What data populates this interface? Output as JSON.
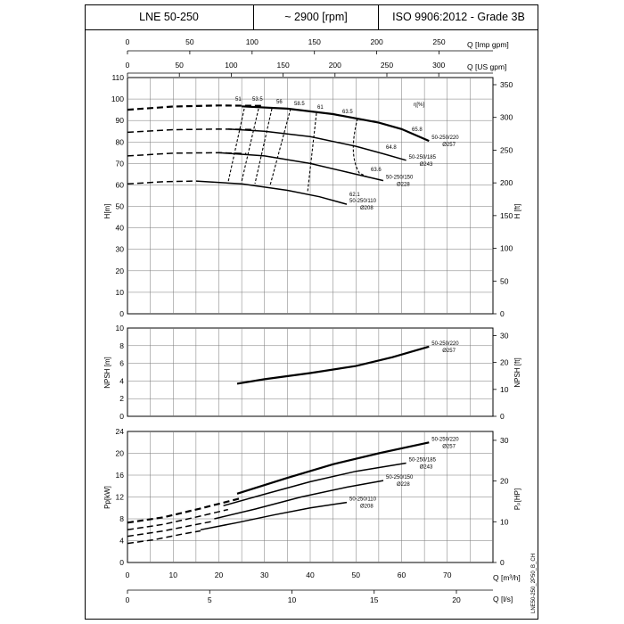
{
  "header": {
    "model": "LNE 50-250",
    "speed": "~ 2900 [rpm]",
    "standard": "ISO 9906:2012 - Grade 3B"
  },
  "chart_data": [
    {
      "type": "line",
      "panel": "head",
      "ylabel": "H[m]",
      "ylabel2": "H [ft]",
      "ylim": [
        0,
        110
      ],
      "yticks": [
        0,
        10,
        20,
        30,
        40,
        50,
        60,
        70,
        80,
        90,
        100,
        110
      ],
      "y2ticks": [
        0,
        50,
        100,
        150,
        200,
        250,
        300,
        350
      ],
      "xlim": [
        0,
        80
      ],
      "top_axis_imp": {
        "label": "Q [Imp gpm]",
        "ticks": [
          0,
          50,
          100,
          150,
          200,
          250
        ]
      },
      "top_axis_us": {
        "label": "Q [US gpm]",
        "ticks": [
          0,
          50,
          100,
          150,
          200,
          250,
          300
        ]
      },
      "efficiency_label": "η[%]",
      "series": [
        {
          "name": "50-250/220",
          "diameter": "Ø257",
          "dashed": [
            [
              0,
              95
            ],
            [
              10,
              96.5
            ],
            [
              20,
              97
            ],
            [
              30,
              96.8
            ]
          ],
          "solid": [
            [
              25,
              96.6
            ],
            [
              35,
              95.5
            ],
            [
              45,
              93
            ],
            [
              55,
              89
            ],
            [
              60,
              86
            ],
            [
              66,
              80.5
            ]
          ]
        },
        {
          "name": "50-250/185",
          "diameter": "Ø243",
          "dashed": [
            [
              0,
              84.5
            ],
            [
              10,
              85.7
            ],
            [
              20,
              86
            ],
            [
              28,
              85.8
            ]
          ],
          "solid": [
            [
              22,
              86
            ],
            [
              30,
              85
            ],
            [
              40,
              82.5
            ],
            [
              50,
              78
            ],
            [
              56,
              74.5
            ],
            [
              61,
              71.5
            ]
          ]
        },
        {
          "name": "50-250/150",
          "diameter": "Ø228",
          "dashed": [
            [
              0,
              73.5
            ],
            [
              10,
              74.8
            ],
            [
              20,
              75
            ],
            [
              26,
              74.6
            ]
          ],
          "solid": [
            [
              20,
              75
            ],
            [
              30,
              73.5
            ],
            [
              40,
              70
            ],
            [
              48,
              66
            ],
            [
              56,
              62
            ]
          ]
        },
        {
          "name": "50-250/110",
          "diameter": "Ø208",
          "dashed": [
            [
              0,
              60.5
            ],
            [
              8,
              61.5
            ],
            [
              15,
              61.8
            ]
          ],
          "solid": [
            [
              15,
              61.8
            ],
            [
              25,
              60.5
            ],
            [
              35,
              57.5
            ],
            [
              42,
              54.5
            ],
            [
              48,
              51
            ]
          ]
        }
      ],
      "efficiency_values": [
        "51",
        "53.5",
        "56",
        "58.5",
        "61",
        "63.5",
        "65.8",
        "64.8",
        "63.6",
        "62.1"
      ]
    },
    {
      "type": "line",
      "panel": "npsh",
      "ylabel": "NPSH [m]",
      "ylabel2": "NPSH [ft]",
      "ylim": [
        0,
        10
      ],
      "yticks": [
        0,
        2,
        4,
        6,
        8,
        10
      ],
      "y2ticks": [
        0,
        10,
        20,
        30
      ],
      "series": [
        {
          "name": "50-250/220",
          "diameter": "Ø257",
          "points": [
            [
              24,
              3.7
            ],
            [
              30,
              4.2
            ],
            [
              40,
              4.9
            ],
            [
              50,
              5.7
            ],
            [
              58,
              6.7
            ],
            [
              66,
              7.9
            ]
          ]
        }
      ]
    },
    {
      "type": "line",
      "panel": "power",
      "ylabel": "Pp[kW]",
      "ylabel2": "Pₚ[HP]",
      "ylim": [
        0,
        24
      ],
      "yticks": [
        0,
        4,
        8,
        12,
        16,
        20,
        24
      ],
      "y2ticks": [
        0,
        10,
        20,
        30
      ],
      "xlabel": "Q [m³/h]",
      "xticks": [
        0,
        10,
        20,
        30,
        40,
        50,
        60,
        70
      ],
      "x2label": "Q [l/s]",
      "x2ticks": [
        0,
        5,
        10,
        15,
        20
      ],
      "series": [
        {
          "name": "50-250/220",
          "diameter": "Ø257",
          "dashed": [
            [
              0,
              7.3
            ],
            [
              8,
              8.3
            ],
            [
              16,
              9.9
            ],
            [
              25,
              11.8
            ]
          ],
          "solid": [
            [
              24,
              12.6
            ],
            [
              35,
              15.5
            ],
            [
              45,
              18
            ],
            [
              55,
              20
            ],
            [
              66,
              22
            ]
          ]
        },
        {
          "name": "50-250/185",
          "diameter": "Ø243",
          "dashed": [
            [
              0,
              6
            ],
            [
              8,
              7
            ],
            [
              16,
              8.5
            ],
            [
              22,
              9.7
            ]
          ],
          "solid": [
            [
              21,
              10.4
            ],
            [
              30,
              12.5
            ],
            [
              40,
              14.8
            ],
            [
              50,
              16.7
            ],
            [
              61,
              18.2
            ]
          ]
        },
        {
          "name": "50-250/150",
          "diameter": "Ø228",
          "dashed": [
            [
              0,
              4.8
            ],
            [
              8,
              5.8
            ],
            [
              14,
              6.8
            ],
            [
              19,
              7.6
            ]
          ],
          "solid": [
            [
              19,
              8
            ],
            [
              28,
              9.8
            ],
            [
              38,
              12
            ],
            [
              48,
              13.8
            ],
            [
              56,
              15
            ]
          ]
        },
        {
          "name": "50-250/110",
          "diameter": "Ø208",
          "dashed": [
            [
              0,
              3.5
            ],
            [
              6,
              4.2
            ],
            [
              12,
              5.2
            ],
            [
              16,
              5.8
            ]
          ],
          "solid": [
            [
              16,
              6
            ],
            [
              24,
              7.3
            ],
            [
              32,
              8.7
            ],
            [
              40,
              10
            ],
            [
              48,
              11
            ]
          ]
        }
      ]
    }
  ],
  "side_code": "LNE50-250_2P50_B_CH"
}
